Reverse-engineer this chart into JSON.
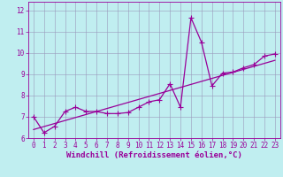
{
  "title": "",
  "xlabel": "Windchill (Refroidissement éolien,°C)",
  "ylabel": "",
  "bg_color": "#c0eef0",
  "line_color": "#990099",
  "xlim": [
    -0.5,
    23.5
  ],
  "ylim": [
    6.0,
    12.4
  ],
  "yticks": [
    6,
    7,
    8,
    9,
    10,
    11,
    12
  ],
  "xticks": [
    0,
    1,
    2,
    3,
    4,
    5,
    6,
    7,
    8,
    9,
    10,
    11,
    12,
    13,
    14,
    15,
    16,
    17,
    18,
    19,
    20,
    21,
    22,
    23
  ],
  "data_x": [
    0,
    1,
    2,
    3,
    4,
    5,
    6,
    7,
    8,
    9,
    10,
    11,
    12,
    13,
    14,
    15,
    16,
    17,
    18,
    19,
    20,
    21,
    22,
    23
  ],
  "data_y": [
    7.0,
    6.25,
    6.55,
    7.25,
    7.45,
    7.25,
    7.25,
    7.15,
    7.15,
    7.2,
    7.45,
    7.7,
    7.8,
    8.55,
    7.45,
    11.65,
    10.5,
    8.45,
    9.05,
    9.1,
    9.3,
    9.45,
    9.85,
    9.95
  ],
  "trend_x": [
    0,
    23
  ],
  "trend_y": [
    6.4,
    9.65
  ],
  "grid_color": "#9999bb",
  "marker": "+",
  "markersize": 4,
  "linewidth": 0.9,
  "xlabel_fontsize": 6.5,
  "tick_fontsize": 5.5
}
